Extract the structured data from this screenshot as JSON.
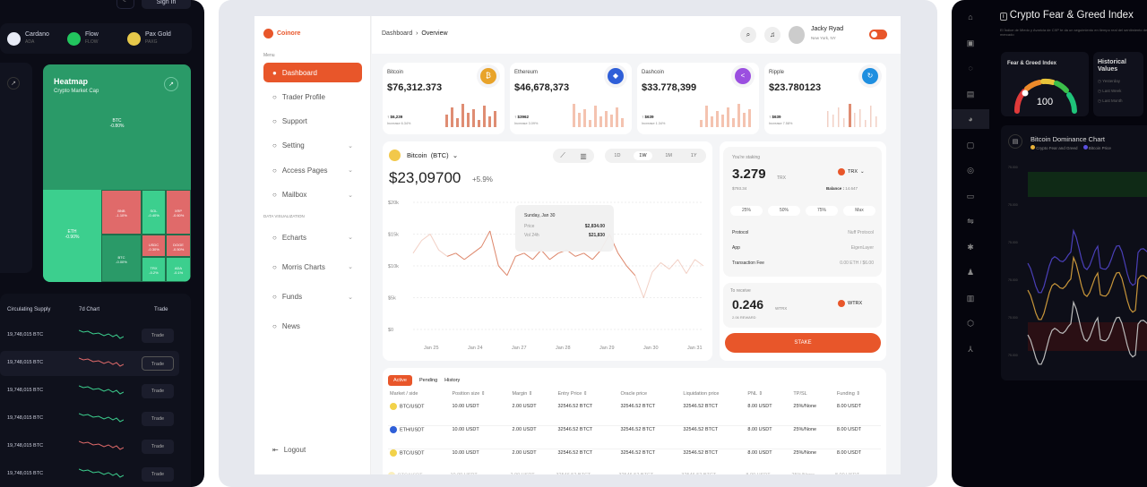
{
  "left_panel": {
    "signin": "Sign In",
    "coins": [
      {
        "name": "Cardano",
        "sym": "ADA",
        "color": "#e8ecf7"
      },
      {
        "name": "Flow",
        "sym": "FLOW",
        "color": "#22c55e"
      },
      {
        "name": "Pax Gold",
        "sym": "PAXG",
        "color": "#e6c84a"
      }
    ],
    "heatmap": {
      "title": "Heatmap",
      "subtitle": "Crypto Market Cap",
      "main": "BTC",
      "main_change": "-0.80%",
      "eth": "ETH",
      "eth_change": "-0.90%",
      "tiles": [
        {
          "l": "BNB",
          "c": "-1.10%",
          "color": "#e06a6a"
        },
        {
          "l": "SOL",
          "c": "-0.40%",
          "color": "#3ccf8e"
        },
        {
          "l": "XRP",
          "c": "-0.60%",
          "color": "#e06a6a"
        },
        {
          "l": "USDC",
          "c": "-0.30%",
          "color": "#e06a6a"
        },
        {
          "l": "DOGE",
          "c": "-0.50%",
          "color": "#e06a6a"
        },
        {
          "l": "BTC",
          "c": "-0.00%",
          "color": "#2a9a68"
        },
        {
          "l": "TRX",
          "c": "-0.2%",
          "color": "#3ccf8e"
        },
        {
          "l": "ADA",
          "c": "-0.1%",
          "color": "#3ccf8e"
        }
      ]
    },
    "table": {
      "headers": [
        "Circulating Supply",
        "7d Chart",
        "Trade"
      ],
      "rows": [
        {
          "supply": "19,748,015 BTC",
          "trend": "up"
        },
        {
          "supply": "19,748,015 BTC",
          "trend": "down"
        },
        {
          "supply": "19,748,015 BTC",
          "trend": "up"
        },
        {
          "supply": "19,748,015 BTC",
          "trend": "up"
        },
        {
          "supply": "19,748,015 BTC",
          "trend": "down"
        },
        {
          "supply": "19,748,015 BTC",
          "trend": "up"
        }
      ],
      "trade_label": "Trade"
    }
  },
  "app": {
    "brand": "Coinore",
    "accent": "#e8562a",
    "menu_label": "Menu",
    "dataviz_label": "DATA VISUALIZATION",
    "nav": [
      {
        "label": "Dashboard",
        "active": true,
        "chev": false
      },
      {
        "label": "Trader Profile",
        "chev": false
      },
      {
        "label": "Support",
        "chev": false
      },
      {
        "label": "Setting",
        "chev": true
      },
      {
        "label": "Access Pages",
        "chev": true
      },
      {
        "label": "Mailbox",
        "chev": true
      }
    ],
    "nav2": [
      {
        "label": "Echarts",
        "chev": true
      },
      {
        "label": "Morris Charts",
        "chev": true
      },
      {
        "label": "Funds",
        "chev": true
      },
      {
        "label": "News",
        "chev": false
      }
    ],
    "logout": "Logout",
    "breadcrumb": [
      "Dashboard",
      "Overview"
    ],
    "user": {
      "name": "Jacky Ryad",
      "location": "New York, NY"
    },
    "stats": [
      {
        "name": "Bitcoin",
        "price": "$76,312.373",
        "delta": "$6,239",
        "note": "Increase 6.34%",
        "color": "#e8a32a",
        "glyph": "₿"
      },
      {
        "name": "Ethereum",
        "price": "$46,678,373",
        "delta": "$3962",
        "note": "Increase 3.09%",
        "color": "#2f5fd8",
        "glyph": "◆"
      },
      {
        "name": "Dashcoin",
        "price": "$33.778,399",
        "delta": "$639",
        "note": "Increase 1.34%",
        "color": "#9b4fe0",
        "glyph": "<"
      },
      {
        "name": "Ripple",
        "price": "$23.780123",
        "delta": "$639",
        "note": "Increase 7.58%",
        "color": "#1f8fe0",
        "glyph": "↻"
      }
    ],
    "chart": {
      "coin": "Bitcoin",
      "ticker": "(BTC)",
      "price": "$23,09700",
      "change": "+5.9%",
      "ranges": [
        "1D",
        "1W",
        "1M",
        "1Y"
      ],
      "active_range": "1W",
      "tooltip": {
        "date": "Sunday, Jan 30",
        "price_label": "Price",
        "price": "$2,834.00",
        "vol_label": "Vol 24h",
        "vol": "$21,830"
      }
    },
    "stake": {
      "label": "You're staking",
      "amount": "3.279",
      "unit": "TRX",
      "usd": "$793.34",
      "token": "TRX",
      "balance_label": "Balance :",
      "balance": "14.647",
      "pcts": [
        "25%",
        "50%",
        "75%",
        "Max"
      ],
      "rows": [
        [
          "Protocol",
          "Nuff Protocol"
        ],
        [
          "App",
          "EigenLayer"
        ],
        [
          "Transaction Fee",
          "0.00 ETH / $6.00"
        ]
      ],
      "receive_label": "To receive",
      "receive": "0.246",
      "receive_unit": "WTRX",
      "receive_token": "WTRX",
      "rewards": "2.06 REWARD",
      "button": "STAKE"
    },
    "positions": {
      "tabs": [
        "Active",
        "Pending",
        "History"
      ],
      "headers": [
        "Market / side",
        "Position size ⇕",
        "Margin ⇕",
        "Entry Price ⇕",
        "Oracle price",
        "Liquidation price",
        "PNL ⇕",
        "TP/SL",
        "Funding ⇕"
      ],
      "rows": [
        {
          "coin": "#f2d24a",
          "cells": [
            "BTC/USDT",
            "10.00 USDT",
            "2.00 USDT",
            "32546.52 BTCT",
            "32546.52 BTCT",
            "32546.52 BTCT",
            "8.00 USDT",
            "25%/None",
            "8.00 USDT"
          ]
        },
        {
          "coin": "#2f5fd8",
          "cells": [
            "ETH/USDT",
            "10.00 USDT",
            "2.00 USDT",
            "32546.52 BTCT",
            "32546.52 BTCT",
            "32546.52 BTCT",
            "8.00 USDT",
            "25%/None",
            "8.00 USDT"
          ]
        },
        {
          "coin": "#f2d24a",
          "cells": [
            "BTC/USDT",
            "10.00 USDT",
            "2.00 USDT",
            "32546.52 BTCT",
            "32546.52 BTCT",
            "32546.52 BTCT",
            "8.00 USDT",
            "25%/None",
            "8.00 USDT"
          ]
        },
        {
          "coin": "#f2d24a",
          "cells": [
            "BTC/USDT",
            "10.00 USDT",
            "2.00 USDT",
            "32546.52 BTCT",
            "32546.52 BTCT",
            "32546.52 BTCT",
            "8.00 USDT",
            "25%/None",
            "8.00 USDT"
          ]
        }
      ]
    }
  },
  "chart_data": {
    "type": "line",
    "x_ticks": [
      "Jan 25",
      "Jan 24",
      "Jan 27",
      "Jan 28",
      "Jan 29",
      "Jan 30",
      "Jan 31"
    ],
    "y_ticks": [
      "$0",
      "$5k",
      "$10k",
      "$15k",
      "$20k"
    ],
    "ylim": [
      0,
      20000
    ],
    "values": [
      12000,
      14000,
      15000,
      12500,
      11500,
      12000,
      11000,
      12000,
      13000,
      15500,
      10000,
      8500,
      11500,
      12000,
      11000,
      12500,
      11000,
      12000,
      12500,
      11500,
      12000,
      11000,
      12500,
      15000,
      12000,
      10000,
      8500,
      5000,
      9000,
      10500,
      9500,
      11000,
      8800,
      11000,
      10000
    ]
  },
  "right_panel": {
    "title": "Crypto Fear & Greed Index",
    "desc": "El Índice de Miedo y Avaricia de CXP te da un seguimiento en tiempo real del sentimiento del mercado",
    "gauge_title": "Fear & Greed Index",
    "gauge_value": "100",
    "hist_title": "Historical Values",
    "hist": [
      "Yesterday",
      "Last Week",
      "Last Month"
    ],
    "dominance_title": "Bitcoin Dominance Chart",
    "legend": [
      {
        "name": "Crypto Fear and Greed",
        "color": "#e8b23a"
      },
      {
        "name": "Bitcoin Price",
        "color": "#5a4fe0"
      }
    ],
    "y_ticks": [
      "75.000",
      "75.000",
      "75.000",
      "75.000",
      "75.000",
      "75.000"
    ]
  }
}
